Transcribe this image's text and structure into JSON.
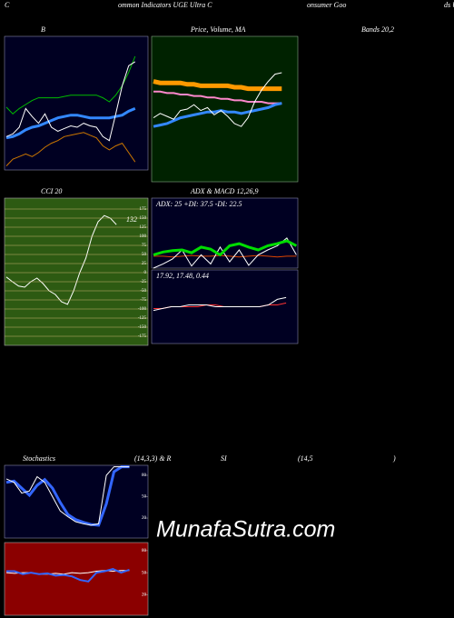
{
  "header": [
    "C",
    "ommon Indicators UGE Ultra C",
    "onsumer Goo",
    "ds U"
  ],
  "watermark": "MunafaSutra.com",
  "chart_data": [
    {
      "type": "line",
      "titles": [
        "B",
        "Bands 20,2"
      ],
      "ylim": [
        0,
        100
      ],
      "series": [
        {
          "color": "#00bb00",
          "values": [
            47,
            42,
            46,
            49,
            52,
            54,
            54,
            54,
            54,
            55,
            56,
            56,
            56,
            56,
            56,
            54,
            51,
            56,
            63,
            73,
            85
          ]
        },
        {
          "color": "#cc7700",
          "values": [
            3,
            8,
            10,
            12,
            10,
            13,
            17,
            20,
            22,
            25,
            26,
            27,
            28,
            26,
            24,
            18,
            15,
            18,
            20,
            13,
            6
          ]
        },
        {
          "color": "#3388ff",
          "values": [
            24,
            25,
            27,
            30,
            32,
            33,
            35,
            37,
            39,
            40,
            41,
            41,
            40,
            39,
            39,
            39,
            39,
            40,
            41,
            44,
            46
          ]
        },
        {
          "color": "#ffffff",
          "values": [
            25,
            27,
            32,
            46,
            40,
            35,
            42,
            32,
            29,
            31,
            33,
            32,
            35,
            33,
            32,
            25,
            22,
            42,
            63,
            78,
            81
          ]
        }
      ]
    },
    {
      "type": "line",
      "titles": [
        "Price, Volume, MA"
      ],
      "ylim": [
        0,
        100
      ],
      "series": [
        {
          "color": "#ff9900",
          "values": [
            69,
            68,
            68,
            68,
            68,
            67,
            67,
            66,
            66,
            66,
            66,
            66,
            65,
            65,
            64,
            64,
            64,
            64,
            64,
            64
          ]
        },
        {
          "color": "#ff88cc",
          "values": [
            62,
            62,
            61,
            61,
            60,
            60,
            59,
            59,
            58,
            58,
            57,
            57,
            56,
            56,
            55,
            55,
            55,
            54,
            54,
            54
          ]
        },
        {
          "color": "#3388ff",
          "values": [
            38,
            39,
            40,
            42,
            44,
            45,
            46,
            47,
            48,
            48,
            49,
            48,
            48,
            47,
            48,
            49,
            50,
            51,
            53,
            54
          ]
        },
        {
          "color": "#ffffff",
          "values": [
            44,
            47,
            45,
            43,
            49,
            50,
            53,
            49,
            51,
            46,
            49,
            45,
            40,
            38,
            44,
            55,
            63,
            69,
            74,
            75
          ]
        }
      ]
    },
    {
      "type": "line",
      "titles": [
        "CCI 20"
      ],
      "annotations": [
        "132"
      ],
      "ylim": [
        -200,
        205
      ],
      "grid": true,
      "yticks": [
        175,
        150,
        125,
        100,
        75,
        50,
        25,
        0,
        -25,
        -50,
        -75,
        -100,
        -125,
        -150,
        -175
      ],
      "series": [
        {
          "color": "#ffffff",
          "values": [
            -12,
            -25,
            -37,
            -40,
            -25,
            -15,
            -30,
            -50,
            -60,
            -80,
            -87,
            -50,
            0,
            40,
            100,
            140,
            157,
            150,
            132
          ]
        }
      ]
    },
    {
      "type": "line",
      "titles": [
        "ADX & MACD 12,26,9"
      ],
      "annotations": [
        "ADX: 25 +DI: 37.5 -DI: 22.5"
      ],
      "ylim": [
        0,
        100
      ],
      "series": [
        {
          "color": "#dd4400",
          "values": [
            17,
            17,
            16,
            17,
            18,
            17,
            17,
            18,
            17,
            16,
            17,
            18,
            17,
            16,
            17,
            17
          ]
        },
        {
          "color": "#ffffff",
          "values": [
            0,
            6,
            13,
            26,
            3,
            19,
            6,
            30,
            9,
            26,
            4,
            19,
            26,
            32,
            43,
            19
          ]
        },
        {
          "color": "#00dd00",
          "values": [
            19,
            23,
            25,
            26,
            22,
            30,
            27,
            19,
            32,
            35,
            30,
            26,
            32,
            35,
            39,
            32
          ]
        }
      ]
    },
    {
      "type": "line",
      "titles": [],
      "annotations": [
        "17.92, 17.48, 0.44"
      ],
      "ylim": [
        -20,
        20
      ],
      "series": [
        {
          "color": "#ff3333",
          "values": [
            -1,
            -1,
            0,
            0,
            0,
            0,
            1,
            1,
            0,
            0,
            0,
            0,
            0,
            1,
            1,
            2
          ]
        },
        {
          "color": "#ffffff",
          "values": [
            -2,
            -1,
            0,
            0,
            1,
            1,
            1,
            0,
            0,
            0,
            0,
            0,
            0,
            1,
            4,
            5
          ]
        }
      ]
    },
    {
      "type": "line",
      "titles": [
        "Stochastics",
        "(14,3,3) & R",
        "SI",
        "(14,5",
        ")"
      ],
      "ylim": [
        -8,
        94
      ],
      "yticks": [
        80,
        50,
        20
      ],
      "series": [
        {
          "color": "#3366ff",
          "values": [
            70,
            72,
            62,
            52,
            66,
            74,
            62,
            42,
            25,
            18,
            14,
            11,
            10,
            40,
            85,
            92,
            92
          ]
        },
        {
          "color": "#ffffff",
          "values": [
            75,
            70,
            55,
            58,
            78,
            70,
            50,
            30,
            22,
            15,
            12,
            10,
            12,
            80,
            92,
            92,
            92
          ]
        }
      ]
    },
    {
      "type": "line",
      "titles": [],
      "ylim": [
        -8,
        91
      ],
      "yticks": [
        80,
        50,
        20
      ],
      "series": [
        {
          "color": "#ffffff",
          "values": [
            50,
            49,
            50,
            50,
            48,
            48,
            49,
            48,
            50,
            49,
            50,
            52,
            53,
            52,
            53,
            53
          ]
        },
        {
          "color": "#3366ff",
          "values": [
            52,
            52,
            48,
            50,
            48,
            49,
            46,
            47,
            45,
            40,
            38,
            50,
            52,
            55,
            50,
            54
          ]
        }
      ]
    }
  ]
}
